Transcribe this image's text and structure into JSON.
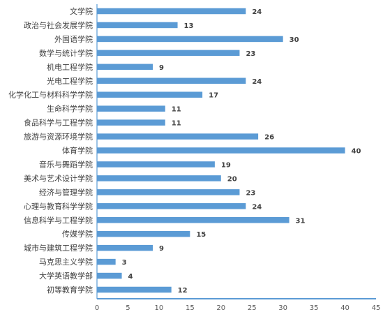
{
  "chart_data": {
    "type": "bar",
    "orientation": "horizontal",
    "categories": [
      "文学院",
      "政治与社会发展学院",
      "外国语学院",
      "数学与统计学院",
      "机电工程学院",
      "光电工程学院",
      "化学化工与材料科学学院",
      "生命科学学院",
      "食品科学与工程学院",
      "旅游与资源环境学院",
      "体育学院",
      "音乐与舞蹈学院",
      "美术与艺术设计学院",
      "经济与管理学院",
      "心理与教育科学学院",
      "信息科学与工程学院",
      "传媒学院",
      "城市与建筑工程学院",
      "马克思主义学院",
      "大学英语教学部",
      "初等教育学院"
    ],
    "values": [
      24,
      13,
      30,
      23,
      9,
      24,
      17,
      11,
      11,
      26,
      40,
      19,
      20,
      23,
      24,
      31,
      15,
      9,
      3,
      4,
      12
    ],
    "xlim": [
      0,
      45
    ],
    "xticks": [
      0,
      5,
      10,
      15,
      20,
      25,
      30,
      35,
      40,
      45
    ],
    "title": "",
    "xlabel": "",
    "ylabel": "",
    "grid": false,
    "bar_color": "#5B9BD5",
    "axis_color": "#5B9BD5"
  }
}
